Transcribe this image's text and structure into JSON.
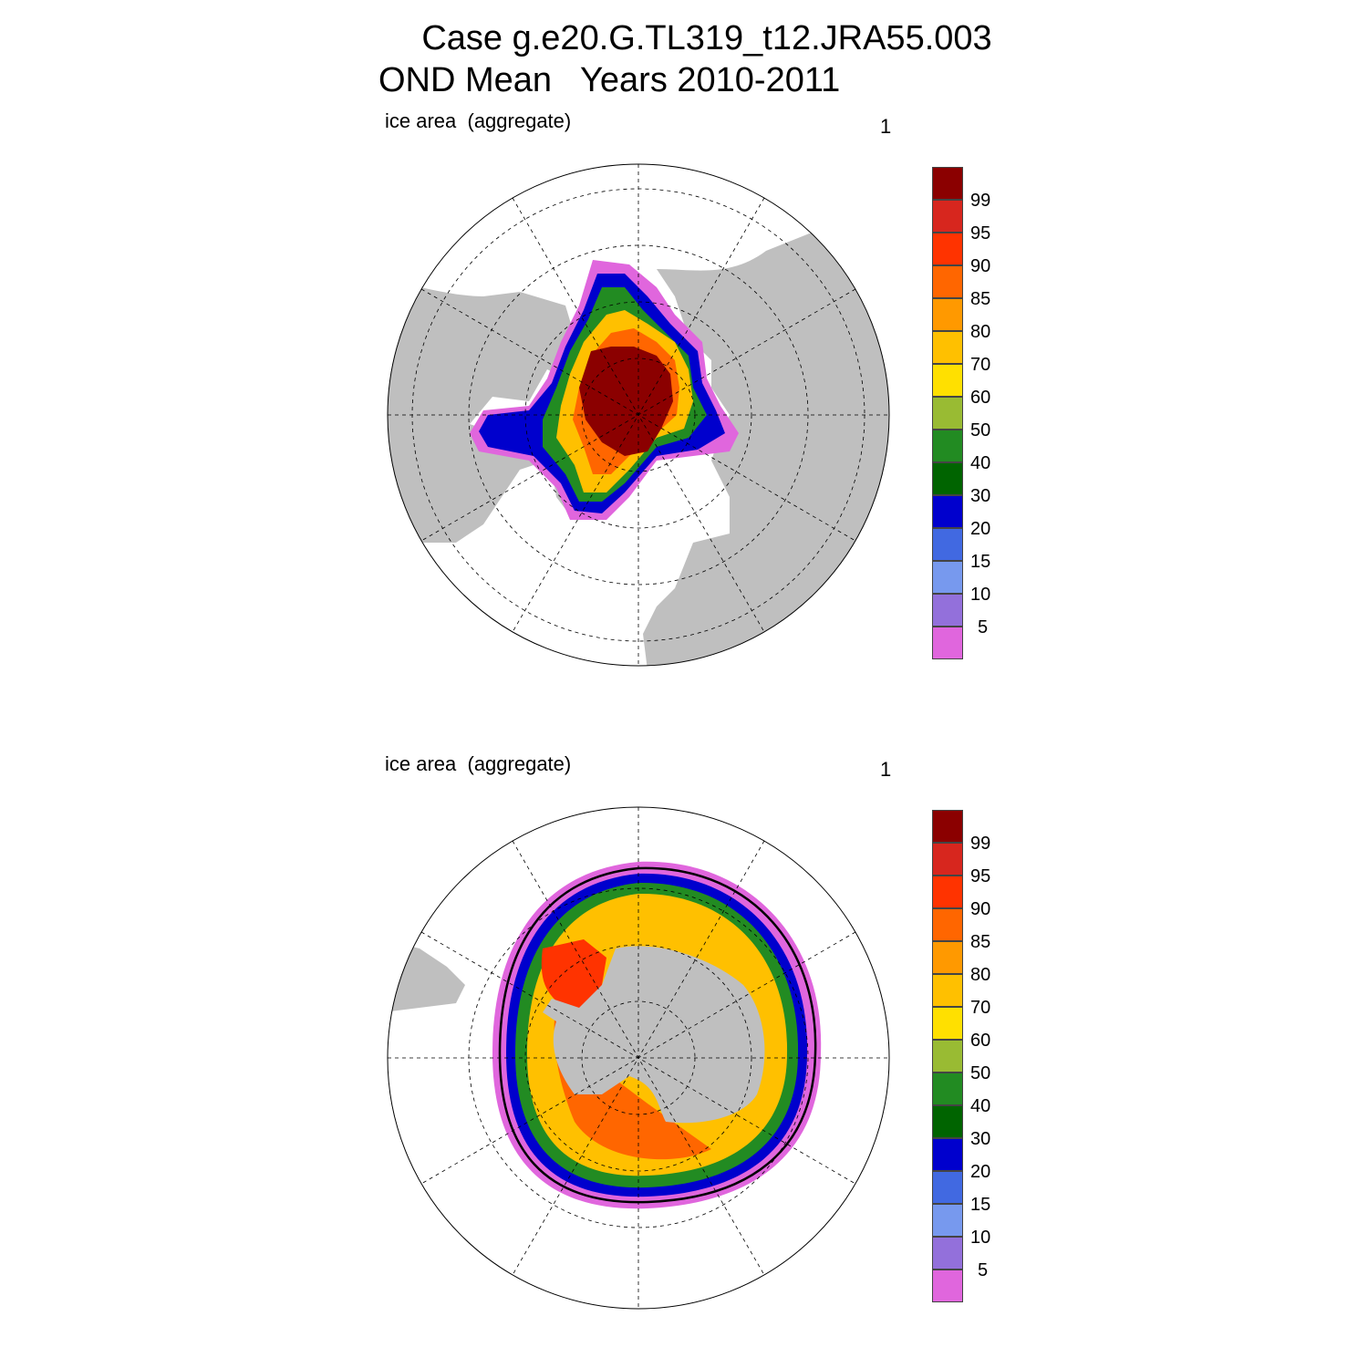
{
  "header": {
    "line1": "Case g.e20.G.TL319_t12.JRA55.003",
    "line2": "OND Mean   Years 2010-2011"
  },
  "panels": [
    {
      "label": "ice area  (aggregate)",
      "number": "1",
      "hemisphere": "north"
    },
    {
      "label": "ice area  (aggregate)",
      "number": "1",
      "hemisphere": "south"
    }
  ],
  "colorbar": {
    "labels": [
      "99",
      "95",
      "90",
      "85",
      "80",
      "70",
      "60",
      "50",
      "40",
      "30",
      "20",
      "15",
      "10",
      "5"
    ],
    "colors": [
      "#8b0000",
      "#d7261e",
      "#ff3300",
      "#ff6600",
      "#ff9900",
      "#ffc000",
      "#ffe000",
      "#99bb33",
      "#228b22",
      "#006400",
      "#0000cd",
      "#4169e1",
      "#7799ee",
      "#9370db",
      "#e066dd"
    ]
  },
  "map_colors": {
    "land": "#bfbfbf",
    "ocean": "#ffffff",
    "grid": "#000000"
  }
}
